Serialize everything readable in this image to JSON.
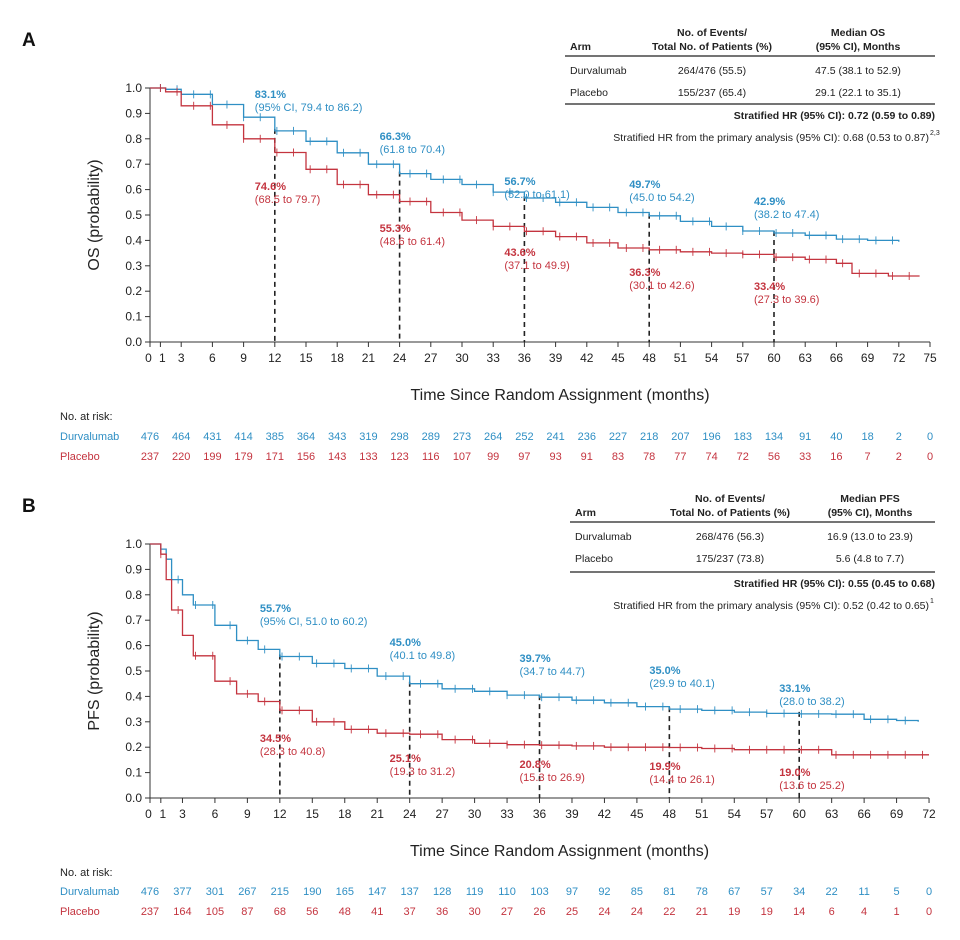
{
  "colors": {
    "durvalumab": "#2f8fc4",
    "placebo": "#c4343f",
    "text": "#222222"
  },
  "chart_data": [
    {
      "panel": "A",
      "type": "line",
      "kind": "kaplan-meier",
      "ylabel": "OS (probability)",
      "xlabel": "Time Since Random Assignment (months)",
      "xlim": [
        0,
        75
      ],
      "ylim": [
        0,
        1
      ],
      "xticks": [
        0,
        1,
        3,
        6,
        9,
        12,
        15,
        18,
        21,
        24,
        27,
        30,
        33,
        36,
        39,
        42,
        45,
        48,
        51,
        54,
        57,
        60,
        63,
        66,
        69,
        72,
        75
      ],
      "yticks": [
        "0.0",
        "0.1",
        "0.2",
        "0.3",
        "0.4",
        "0.5",
        "0.6",
        "0.7",
        "0.8",
        "0.9",
        "1.0"
      ],
      "series": [
        {
          "name": "Durvalumab",
          "x": [
            0,
            1.5,
            3,
            6,
            9,
            12,
            15,
            18,
            21,
            24,
            27,
            30,
            33,
            36,
            39,
            42,
            45,
            48,
            51,
            54,
            57,
            60,
            63,
            66,
            69,
            72
          ],
          "values": [
            1.0,
            0.995,
            0.975,
            0.935,
            0.885,
            0.831,
            0.79,
            0.745,
            0.7,
            0.663,
            0.64,
            0.62,
            0.59,
            0.567,
            0.55,
            0.53,
            0.51,
            0.497,
            0.475,
            0.455,
            0.437,
            0.429,
            0.42,
            0.405,
            0.4,
            0.395
          ]
        },
        {
          "name": "Placebo",
          "x": [
            0,
            1.5,
            3,
            6,
            9,
            12,
            15,
            18,
            21,
            24,
            27,
            30,
            33,
            36,
            39,
            42,
            45,
            48,
            51,
            54,
            57,
            60,
            63,
            66,
            67.5,
            71,
            74
          ],
          "values": [
            1.0,
            0.985,
            0.93,
            0.855,
            0.8,
            0.746,
            0.68,
            0.62,
            0.58,
            0.553,
            0.51,
            0.48,
            0.455,
            0.436,
            0.415,
            0.39,
            0.37,
            0.363,
            0.355,
            0.35,
            0.345,
            0.334,
            0.325,
            0.31,
            0.27,
            0.26,
            0.26
          ]
        }
      ],
      "landmarks": [
        {
          "month": 12,
          "durvalumab": {
            "value": "83.1%",
            "ci": "(95% CI, 79.4 to 86.2)"
          },
          "placebo": {
            "value": "74.6%",
            "ci": "(68.5 to 79.7)"
          }
        },
        {
          "month": 24,
          "durvalumab": {
            "value": "66.3%",
            "ci": "(61.8 to 70.4)"
          },
          "placebo": {
            "value": "55.3%",
            "ci": "(48.6 to 61.4)"
          }
        },
        {
          "month": 36,
          "durvalumab": {
            "value": "56.7%",
            "ci": "(52.0 to 61.1)"
          },
          "placebo": {
            "value": "43.6%",
            "ci": "(37.1 to 49.9)"
          }
        },
        {
          "month": 48,
          "durvalumab": {
            "value": "49.7%",
            "ci": "(45.0 to 54.2)"
          },
          "placebo": {
            "value": "36.3%",
            "ci": "(30.1 to 42.6)"
          }
        },
        {
          "month": 60,
          "durvalumab": {
            "value": "42.9%",
            "ci": "(38.2 to 47.4)"
          },
          "placebo": {
            "value": "33.4%",
            "ci": "(27.3 to 39.6)"
          }
        }
      ],
      "table": {
        "headers": [
          "Arm",
          "No. of Events/",
          "Total No. of Patients (%)",
          "Median OS",
          "(95% CI), Months"
        ],
        "rows": [
          {
            "arm": "Durvalumab",
            "events": "264/476 (55.5)",
            "median": "47.5 (38.1 to 52.9)"
          },
          {
            "arm": "Placebo",
            "events": "155/237 (65.4)",
            "median": "29.1 (22.1 to 35.1)"
          }
        ],
        "hr": "Stratified HR (95% CI): 0.72 (0.59 to 0.89)",
        "hr_primary": "Stratified HR from the primary analysis (95% CI): 0.68 (0.53 to 0.87)",
        "hr_primary_ref": "2,3"
      },
      "at_risk": {
        "label": "No. at risk:",
        "durvalumab": [
          "476",
          "464",
          "431",
          "414",
          "385",
          "364",
          "343",
          "319",
          "298",
          "289",
          "273",
          "264",
          "252",
          "241",
          "236",
          "227",
          "218",
          "207",
          "196",
          "183",
          "134",
          "91",
          "40",
          "18",
          "2",
          "0"
        ],
        "placebo": [
          "237",
          "220",
          "199",
          "179",
          "171",
          "156",
          "143",
          "133",
          "123",
          "116",
          "107",
          "99",
          "97",
          "93",
          "91",
          "83",
          "78",
          "77",
          "74",
          "72",
          "56",
          "33",
          "16",
          "7",
          "2",
          "0"
        ]
      }
    },
    {
      "panel": "B",
      "type": "line",
      "kind": "kaplan-meier",
      "ylabel": "PFS (probability)",
      "xlabel": "Time Since Random Assignment (months)",
      "xlim": [
        0,
        72
      ],
      "ylim": [
        0,
        1
      ],
      "xticks": [
        0,
        1,
        3,
        6,
        9,
        12,
        15,
        18,
        21,
        24,
        27,
        30,
        33,
        36,
        39,
        42,
        45,
        48,
        51,
        54,
        57,
        60,
        63,
        66,
        69,
        72
      ],
      "yticks": [
        "0.0",
        "0.1",
        "0.2",
        "0.3",
        "0.4",
        "0.5",
        "0.6",
        "0.7",
        "0.8",
        "0.9",
        "1.0"
      ],
      "series": [
        {
          "name": "Durvalumab",
          "x": [
            0,
            1,
            1.5,
            2,
            3,
            4,
            6,
            8,
            10,
            12,
            15,
            18,
            21,
            24,
            27,
            30,
            33,
            36,
            39,
            42,
            45,
            48,
            51,
            54,
            57,
            60,
            63,
            66,
            69,
            71
          ],
          "values": [
            1.0,
            0.98,
            0.94,
            0.86,
            0.8,
            0.76,
            0.68,
            0.62,
            0.585,
            0.557,
            0.53,
            0.51,
            0.48,
            0.45,
            0.43,
            0.42,
            0.405,
            0.397,
            0.385,
            0.375,
            0.36,
            0.35,
            0.345,
            0.338,
            0.333,
            0.331,
            0.33,
            0.31,
            0.305,
            0.3
          ]
        },
        {
          "name": "Placebo",
          "x": [
            0,
            1,
            1.5,
            2,
            3,
            4,
            6,
            8,
            10,
            12,
            15,
            18,
            21,
            24,
            27,
            30,
            33,
            36,
            39,
            42,
            45,
            48,
            51,
            54,
            57,
            60,
            63,
            66,
            69,
            72
          ],
          "values": [
            1.0,
            0.96,
            0.86,
            0.74,
            0.64,
            0.56,
            0.46,
            0.41,
            0.38,
            0.345,
            0.3,
            0.27,
            0.255,
            0.251,
            0.23,
            0.215,
            0.21,
            0.208,
            0.205,
            0.2,
            0.2,
            0.199,
            0.195,
            0.19,
            0.19,
            0.19,
            0.17,
            0.17,
            0.17,
            0.17
          ]
        }
      ],
      "landmarks": [
        {
          "month": 12,
          "durvalumab": {
            "value": "55.7%",
            "ci": "(95% CI, 51.0 to 60.2)"
          },
          "placebo": {
            "value": "34.5%",
            "ci": "(28.3 to 40.8)"
          }
        },
        {
          "month": 24,
          "durvalumab": {
            "value": "45.0%",
            "ci": "(40.1 to 49.8)"
          },
          "placebo": {
            "value": "25.1%",
            "ci": "(19.3 to 31.2)"
          }
        },
        {
          "month": 36,
          "durvalumab": {
            "value": "39.7%",
            "ci": "(34.7 to 44.7)"
          },
          "placebo": {
            "value": "20.8%",
            "ci": "(15.3 to 26.9)"
          }
        },
        {
          "month": 48,
          "durvalumab": {
            "value": "35.0%",
            "ci": "(29.9 to 40.1)"
          },
          "placebo": {
            "value": "19.9%",
            "ci": "(14.4 to 26.1)"
          }
        },
        {
          "month": 60,
          "durvalumab": {
            "value": "33.1%",
            "ci": "(28.0 to 38.2)"
          },
          "placebo": {
            "value": "19.0%",
            "ci": "(13.6 to 25.2)"
          }
        }
      ],
      "table": {
        "headers": [
          "Arm",
          "No. of Events/",
          "Total No. of Patients (%)",
          "Median PFS",
          "(95% CI), Months"
        ],
        "rows": [
          {
            "arm": "Durvalumab",
            "events": "268/476 (56.3)",
            "median": "16.9 (13.0 to 23.9)"
          },
          {
            "arm": "Placebo",
            "events": "175/237 (73.8)",
            "median": "5.6 (4.8 to 7.7)"
          }
        ],
        "hr": "Stratified HR (95% CI): 0.55 (0.45 to 0.68)",
        "hr_primary": "Stratified HR from the primary analysis (95% CI): 0.52 (0.42 to 0.65)",
        "hr_primary_ref": "1"
      },
      "at_risk": {
        "label": "No. at risk:",
        "durvalumab": [
          "476",
          "377",
          "301",
          "267",
          "215",
          "190",
          "165",
          "147",
          "137",
          "128",
          "119",
          "110",
          "103",
          "97",
          "92",
          "85",
          "81",
          "78",
          "67",
          "57",
          "34",
          "22",
          "11",
          "5",
          "0"
        ],
        "placebo": [
          "237",
          "164",
          "105",
          "87",
          "68",
          "56",
          "48",
          "41",
          "37",
          "36",
          "30",
          "27",
          "26",
          "25",
          "24",
          "24",
          "22",
          "21",
          "19",
          "19",
          "14",
          "6",
          "4",
          "1",
          "0"
        ]
      }
    }
  ]
}
